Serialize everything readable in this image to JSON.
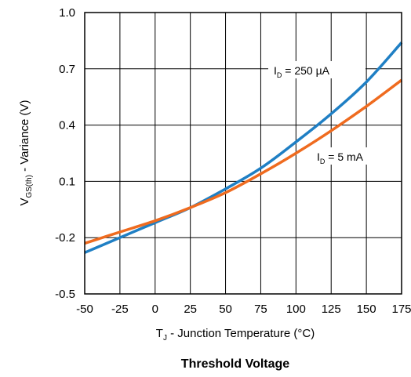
{
  "chart_data": {
    "type": "line",
    "caption": "Threshold Voltage",
    "xlabel": {
      "main": "T",
      "sub": "J",
      "rest": " - Junction Temperature (°C)"
    },
    "ylabel": {
      "main": "V",
      "sub": "GS(th)",
      "rest": " - Variance (V)"
    },
    "xlim": [
      -50,
      175
    ],
    "ylim": [
      -0.5,
      1.0
    ],
    "xticks": [
      "-50",
      "-25",
      "0",
      "25",
      "50",
      "75",
      "100",
      "125",
      "150",
      "175"
    ],
    "yticks": [
      "-0.5",
      "-0.2",
      "0.1",
      "0.4",
      "0.7",
      "1.0"
    ],
    "xtick_values": [
      -50,
      -25,
      0,
      25,
      50,
      75,
      100,
      125,
      150,
      175
    ],
    "ytick_values": [
      -0.5,
      -0.2,
      0.1,
      0.4,
      0.7,
      1.0
    ],
    "grid": true,
    "series": [
      {
        "name": "I_D = 250 µA",
        "label": {
          "main": "I",
          "sub": "D",
          "rest": " = 250 µA"
        },
        "color": "#1f7fc4",
        "x": [
          -50,
          -25,
          0,
          25,
          50,
          75,
          100,
          125,
          150,
          175
        ],
        "y": [
          -0.28,
          -0.2,
          -0.12,
          -0.04,
          0.06,
          0.17,
          0.31,
          0.46,
          0.63,
          0.84
        ]
      },
      {
        "name": "I_D = 5 mA",
        "label": {
          "main": "I",
          "sub": "D",
          "rest": " = 5 mA"
        },
        "color": "#ef6b1f",
        "x": [
          -50,
          -25,
          0,
          25,
          50,
          75,
          100,
          125,
          150,
          175
        ],
        "y": [
          -0.23,
          -0.17,
          -0.11,
          -0.04,
          0.04,
          0.14,
          0.25,
          0.37,
          0.5,
          0.64
        ]
      }
    ]
  }
}
